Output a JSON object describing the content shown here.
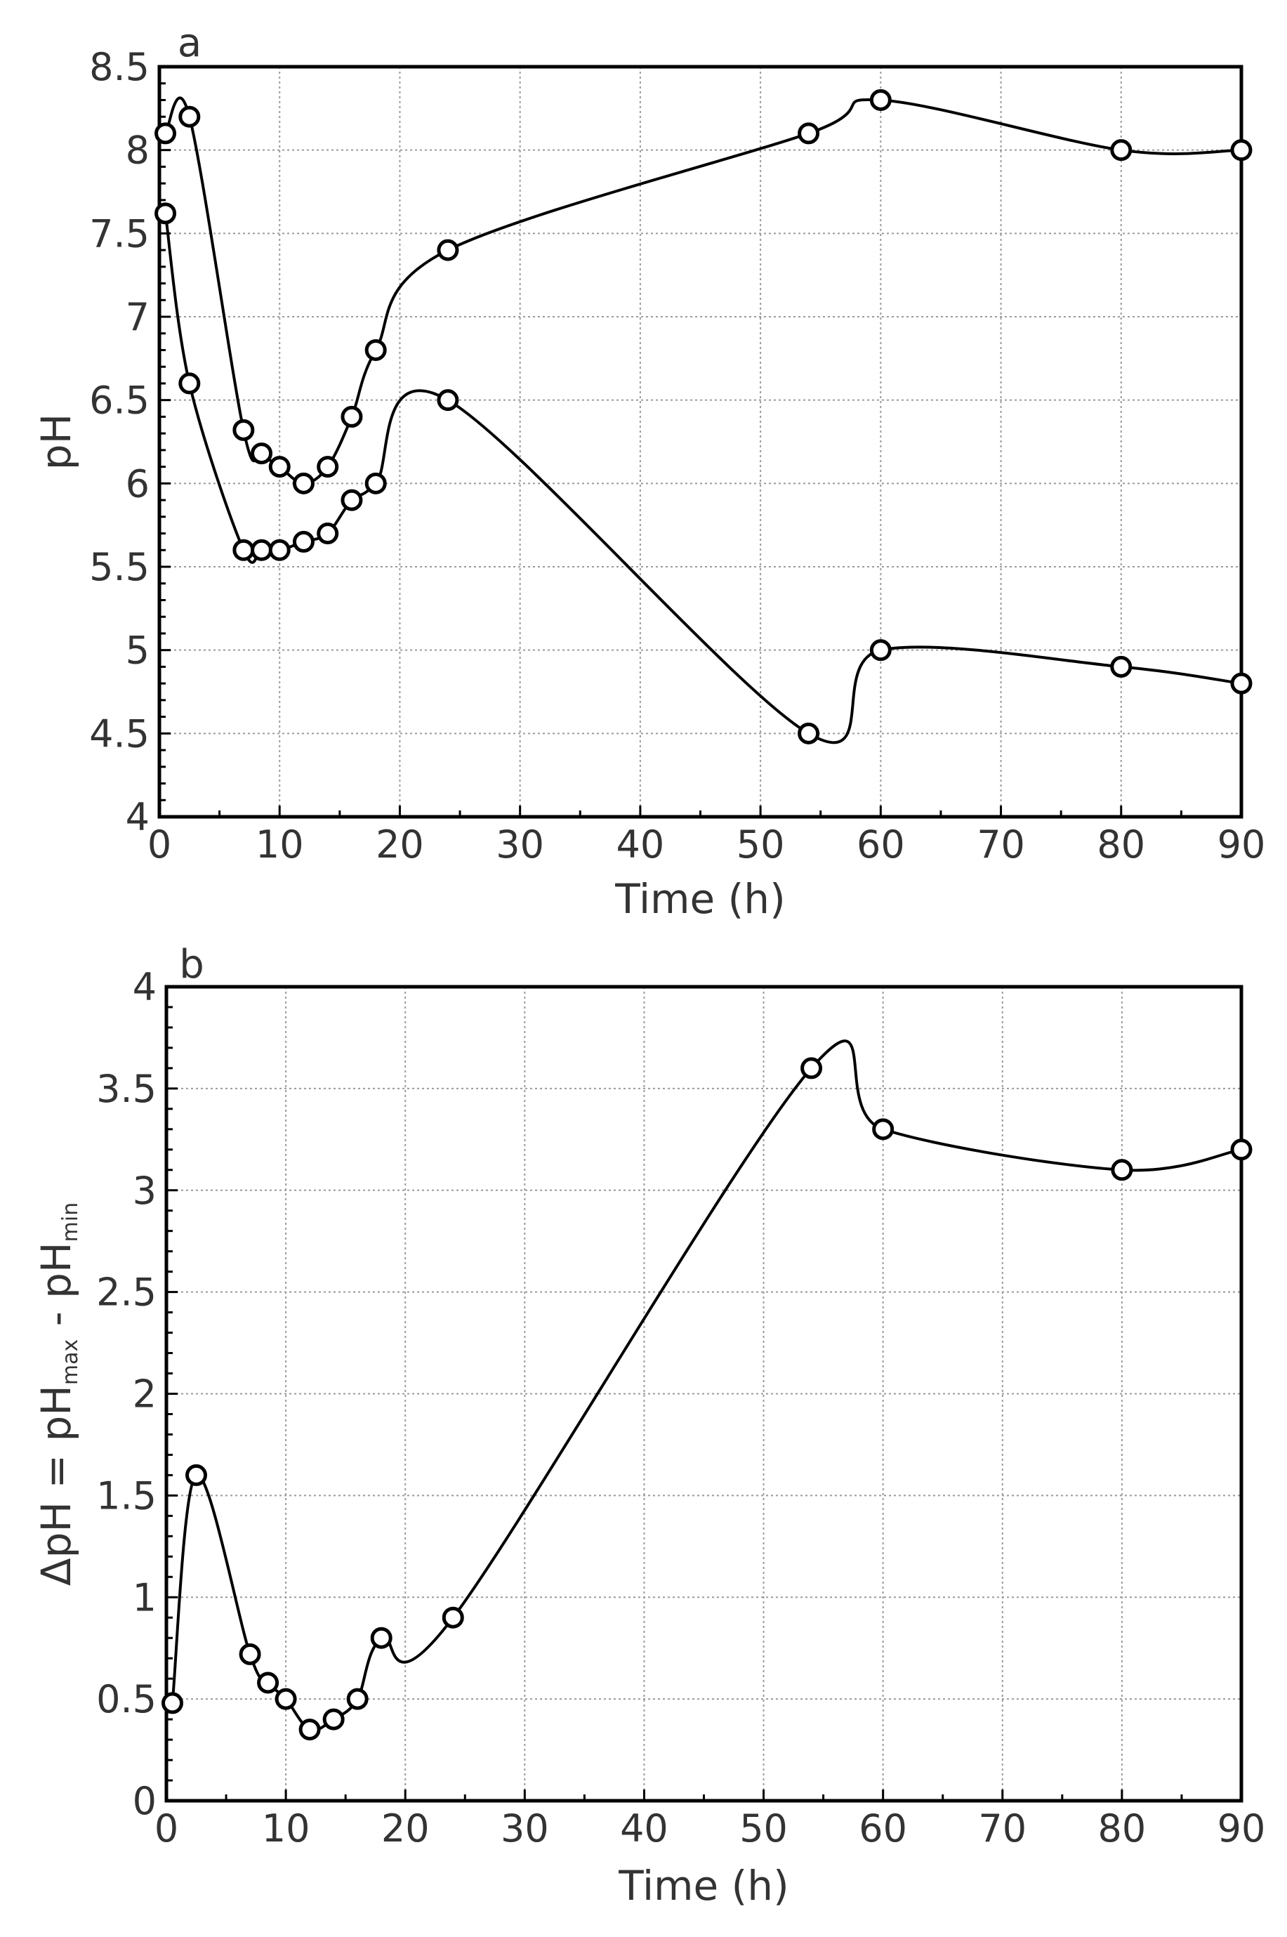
{
  "chart_data": [
    {
      "panel": "a",
      "type": "line",
      "xlabel": "Time (h)",
      "ylabel": "pH",
      "xlim": [
        0,
        90
      ],
      "ylim": [
        4,
        8.5
      ],
      "grid": true,
      "xticks": [
        0,
        10,
        20,
        30,
        40,
        50,
        60,
        70,
        80,
        90
      ],
      "yticks": [
        4,
        4.5,
        5,
        5.5,
        6,
        6.5,
        7,
        7.5,
        8,
        8.5
      ],
      "xtick_labels": [
        "0",
        "10",
        "20",
        "30",
        "40",
        "50",
        "60",
        "70",
        "80",
        "90"
      ],
      "ytick_labels": [
        "4",
        "4.5",
        "5",
        "5.5",
        "6",
        "6.5",
        "7",
        "7.5",
        "8",
        "8.5"
      ],
      "series": [
        {
          "name": "pH max",
          "x": [
            0.5,
            2.5,
            7,
            8.5,
            10,
            12,
            14,
            16,
            18,
            24,
            54,
            60,
            80,
            90
          ],
          "y": [
            8.1,
            8.2,
            6.32,
            6.18,
            6.1,
            6.0,
            6.1,
            6.4,
            6.8,
            7.4,
            8.1,
            8.3,
            8.0,
            8.0
          ]
        },
        {
          "name": "pH min",
          "x": [
            0.5,
            2.5,
            7,
            8.5,
            10,
            12,
            14,
            16,
            18,
            24,
            54,
            60,
            80,
            90
          ],
          "y": [
            7.62,
            6.6,
            5.6,
            5.6,
            5.6,
            5.65,
            5.7,
            5.9,
            6.0,
            6.5,
            4.5,
            5.0,
            4.9,
            4.8
          ]
        }
      ]
    },
    {
      "panel": "b",
      "type": "line",
      "xlabel": "Time (h)",
      "ylabel_main": "ΔpH = pH",
      "ylabel_sub1": "max",
      "ylabel_mid": " - pH",
      "ylabel_sub2": "min",
      "xlim": [
        0,
        90
      ],
      "ylim": [
        0,
        4
      ],
      "grid": true,
      "xticks": [
        0,
        10,
        20,
        30,
        40,
        50,
        60,
        70,
        80,
        90
      ],
      "yticks": [
        0,
        0.5,
        1,
        1.5,
        2,
        2.5,
        3,
        3.5,
        4
      ],
      "xtick_labels": [
        "0",
        "10",
        "20",
        "30",
        "40",
        "50",
        "60",
        "70",
        "80",
        "90"
      ],
      "ytick_labels": [
        "0",
        "0.5",
        "1",
        "1.5",
        "2",
        "2.5",
        "3",
        "3.5",
        "4"
      ],
      "series": [
        {
          "name": "ΔpH",
          "x": [
            0.5,
            2.5,
            7,
            8.5,
            10,
            12,
            14,
            16,
            18,
            24,
            54,
            60,
            80,
            90
          ],
          "y": [
            0.48,
            1.6,
            0.72,
            0.58,
            0.5,
            0.35,
            0.4,
            0.5,
            0.8,
            0.9,
            3.6,
            3.3,
            3.1,
            3.2
          ]
        }
      ]
    }
  ]
}
